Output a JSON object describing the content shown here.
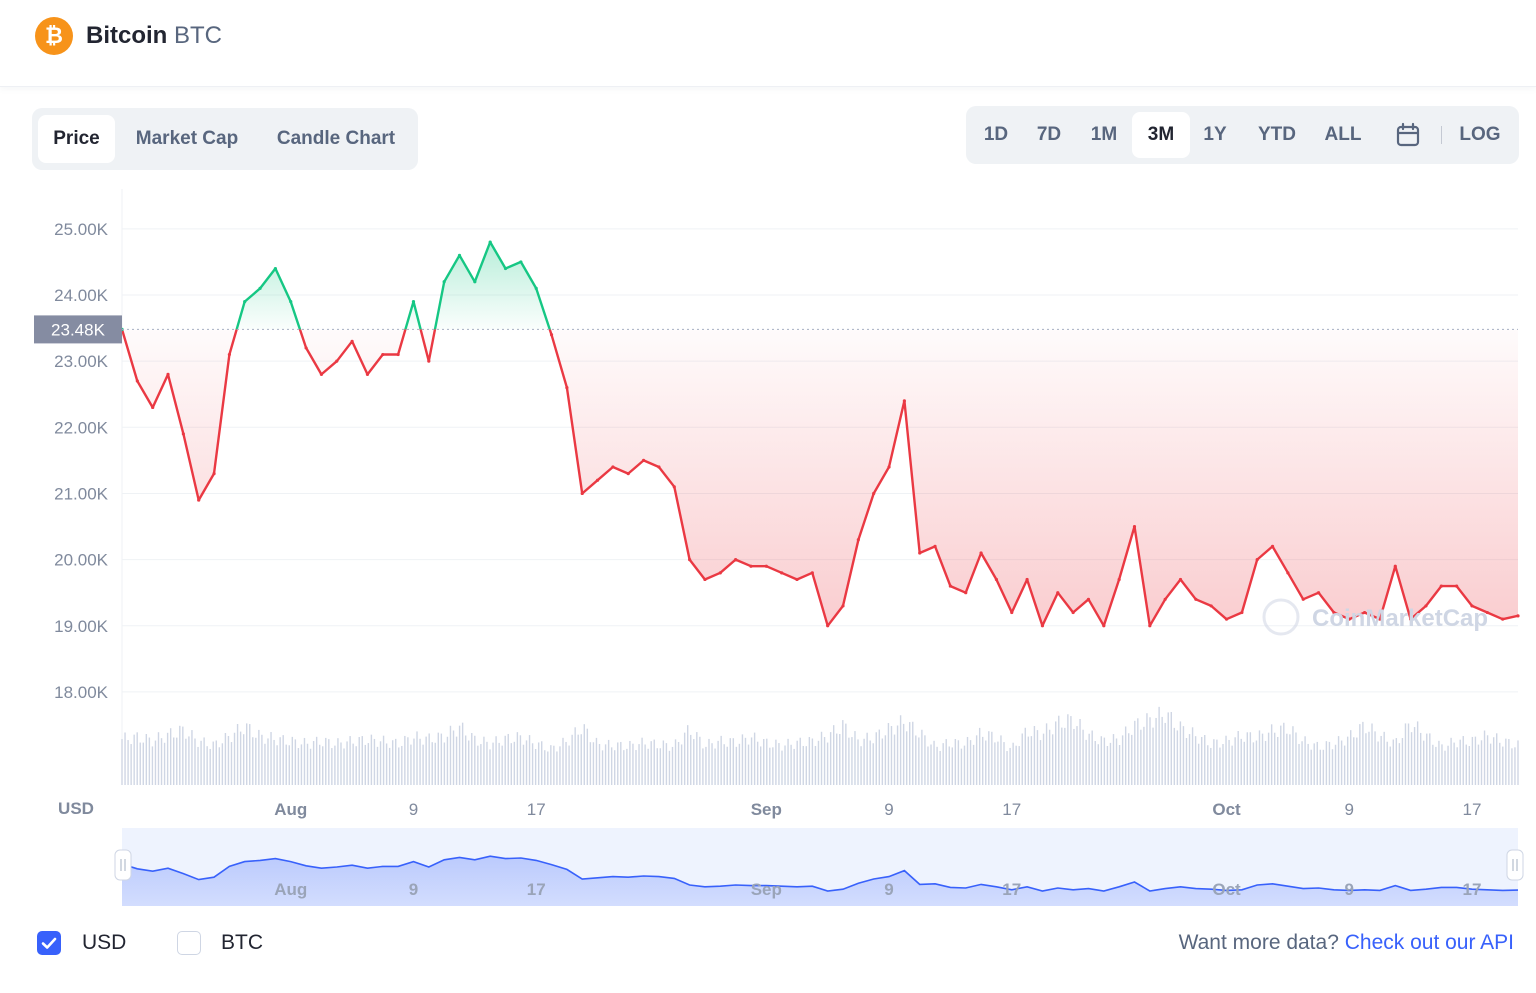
{
  "coin": {
    "name": "Bitcoin",
    "symbol": "BTC",
    "logo_glyph": "₿",
    "logo_color": "#f7931a"
  },
  "tabs": [
    {
      "label": "Price",
      "active": true
    },
    {
      "label": "Market Cap",
      "active": false
    },
    {
      "label": "Candle Chart",
      "active": false
    }
  ],
  "ranges": [
    {
      "label": "1D",
      "active": false
    },
    {
      "label": "7D",
      "active": false
    },
    {
      "label": "1M",
      "active": false
    },
    {
      "label": "3M",
      "active": true
    },
    {
      "label": "1Y",
      "active": false
    },
    {
      "label": "YTD",
      "active": false
    },
    {
      "label": "ALL",
      "active": false
    }
  ],
  "calendar_icon": "calendar-icon",
  "log_label": "LOG",
  "chart_data": {
    "type": "line",
    "currency_label": "USD",
    "y_ticks": [
      "25.00K",
      "24.00K",
      "23.00K",
      "22.00K",
      "21.00K",
      "20.00K",
      "19.00K",
      "18.00K"
    ],
    "y_tick_values": [
      25000,
      24000,
      23000,
      22000,
      21000,
      20000,
      19000,
      18000
    ],
    "ylim": [
      17500,
      25300
    ],
    "baseline_label": "23.48K",
    "baseline_value": 23480,
    "x_ticks": [
      {
        "label": "Aug",
        "day": 11,
        "bold": true
      },
      {
        "label": "9",
        "day": 19,
        "bold": false
      },
      {
        "label": "17",
        "day": 27,
        "bold": false
      },
      {
        "label": "Sep",
        "day": 42,
        "bold": true
      },
      {
        "label": "9",
        "day": 50,
        "bold": false
      },
      {
        "label": "17",
        "day": 58,
        "bold": false
      },
      {
        "label": "Oct",
        "day": 72,
        "bold": true
      },
      {
        "label": "9",
        "day": 80,
        "bold": false
      },
      {
        "label": "17",
        "day": 88,
        "bold": false
      }
    ],
    "x_days": [
      0,
      1,
      2,
      3,
      4,
      5,
      6,
      7,
      8,
      9,
      10,
      11,
      12,
      13,
      14,
      15,
      16,
      17,
      18,
      19,
      20,
      21,
      22,
      23,
      24,
      25,
      26,
      27,
      28,
      29,
      30,
      31,
      32,
      33,
      34,
      35,
      36,
      37,
      38,
      39,
      40,
      41,
      42,
      43,
      44,
      45,
      46,
      47,
      48,
      49,
      50,
      51,
      52,
      53,
      54,
      55,
      56,
      57,
      58,
      59,
      60,
      61,
      62,
      63,
      64,
      65,
      66,
      67,
      68,
      69,
      70,
      71,
      72,
      73,
      74,
      75,
      76,
      77,
      78,
      79,
      80,
      81,
      82,
      83,
      84,
      85,
      86,
      87,
      88,
      89,
      90,
      91
    ],
    "series": [
      {
        "values": [
          23480,
          22700,
          22300,
          22800,
          21900,
          20900,
          21300,
          23100,
          23900,
          24100,
          24400,
          23900,
          23200,
          22800,
          23000,
          23300,
          22800,
          23100,
          23100,
          23900,
          23000,
          24200,
          24600,
          24200,
          24800,
          24400,
          24500,
          24100,
          23400,
          22600,
          21000,
          21200,
          21400,
          21300,
          21500,
          21400,
          21100,
          20000,
          19700,
          19800,
          20000,
          19900,
          19900,
          19800,
          19700,
          19800,
          19000,
          19300,
          20300,
          21000,
          21400,
          22400,
          20100,
          20200,
          19600,
          19500,
          20100,
          19700,
          19200,
          19700,
          19000,
          19500,
          19200,
          19400,
          19000,
          19700,
          20500,
          19000,
          19400,
          19700,
          19400,
          19300,
          19100,
          19200,
          20000,
          20200,
          19800,
          19400,
          19500,
          19200,
          19100,
          19200,
          19100,
          19900,
          19100,
          19300,
          19600,
          19600,
          19300,
          19200,
          19100,
          19150
        ]
      }
    ],
    "volume": [
      0.58,
      0.6,
      0.56,
      0.63,
      0.69,
      0.55,
      0.5,
      0.61,
      0.74,
      0.61,
      0.58,
      0.55,
      0.52,
      0.55,
      0.52,
      0.55,
      0.57,
      0.55,
      0.52,
      0.6,
      0.58,
      0.61,
      0.73,
      0.57,
      0.52,
      0.58,
      0.6,
      0.52,
      0.45,
      0.55,
      0.73,
      0.51,
      0.5,
      0.49,
      0.53,
      0.51,
      0.49,
      0.7,
      0.5,
      0.55,
      0.54,
      0.6,
      0.53,
      0.5,
      0.53,
      0.55,
      0.62,
      0.75,
      0.56,
      0.6,
      0.7,
      0.8,
      0.65,
      0.48,
      0.53,
      0.52,
      0.65,
      0.6,
      0.45,
      0.68,
      0.65,
      0.78,
      0.82,
      0.63,
      0.55,
      0.58,
      0.75,
      0.82,
      0.9,
      0.72,
      0.62,
      0.52,
      0.55,
      0.62,
      0.6,
      0.68,
      0.72,
      0.55,
      0.48,
      0.52,
      0.6,
      0.75,
      0.62,
      0.52,
      0.78,
      0.62,
      0.48,
      0.55,
      0.55,
      0.62,
      0.55,
      0.5
    ],
    "navigator_labels": [
      {
        "label": "Aug",
        "day": 11
      },
      {
        "label": "9",
        "day": 19
      },
      {
        "label": "17",
        "day": 27
      },
      {
        "label": "Sep",
        "day": 42
      },
      {
        "label": "9",
        "day": 50
      },
      {
        "label": "17",
        "day": 58
      },
      {
        "label": "Oct",
        "day": 72
      },
      {
        "label": "9",
        "day": 80
      },
      {
        "label": "17",
        "day": 88
      }
    ],
    "watermark": "CoinMarketCap",
    "colors": {
      "up": "#16c784",
      "down": "#ea3943",
      "navigator_line": "#3861fb",
      "volume": "#cfd6e4"
    }
  },
  "footer": {
    "usd": {
      "label": "USD",
      "checked": true
    },
    "btc": {
      "label": "BTC",
      "checked": false
    },
    "more_text": "Want more data?",
    "api_link": "Check out our API"
  }
}
